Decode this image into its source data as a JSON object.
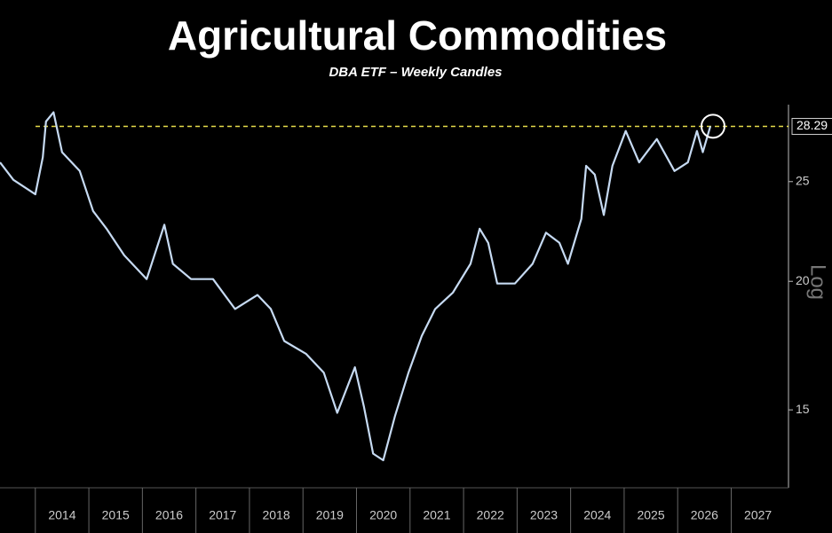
{
  "chart_data": {
    "type": "line",
    "title": "Agricultural Commodities",
    "subtitle": "DBA ETF – Weekly Candles",
    "scale_label": "Log",
    "log_scale": true,
    "x": [
      2013.34,
      2013.59,
      2014.0,
      2014.14,
      2014.2,
      2014.34,
      2014.5,
      2014.83,
      2015.08,
      2015.33,
      2015.66,
      2016.08,
      2016.41,
      2016.57,
      2016.91,
      2017.32,
      2017.73,
      2018.15,
      2018.4,
      2018.65,
      2019.06,
      2019.39,
      2019.64,
      2019.97,
      2020.14,
      2020.31,
      2020.5,
      2020.72,
      2020.97,
      2021.22,
      2021.47,
      2021.8,
      2022.13,
      2022.3,
      2022.46,
      2022.63,
      2022.96,
      2023.29,
      2023.54,
      2023.79,
      2023.95,
      2024.2,
      2024.29,
      2024.45,
      2024.62,
      2024.78,
      2025.03,
      2025.28,
      2025.61,
      2025.94,
      2026.19,
      2026.36,
      2026.47,
      2026.61
    ],
    "series": [
      {
        "name": "DBA",
        "color": "#c6daf2",
        "values": [
          26.1,
          25.1,
          24.3,
          26.4,
          28.6,
          29.2,
          26.7,
          25.6,
          23.4,
          22.5,
          21.2,
          20.1,
          22.7,
          20.8,
          20.1,
          20.1,
          18.8,
          19.4,
          18.8,
          17.5,
          17.0,
          16.3,
          14.9,
          16.5,
          15.1,
          13.6,
          13.4,
          14.8,
          16.3,
          17.7,
          18.8,
          19.5,
          20.8,
          22.5,
          21.8,
          19.9,
          19.9,
          20.8,
          22.3,
          21.8,
          20.8,
          23.0,
          25.9,
          25.4,
          23.2,
          25.9,
          28.0,
          26.1,
          27.5,
          25.6,
          26.1,
          28.0,
          26.7,
          28.3
        ]
      }
    ],
    "xlim": [
      2013.34,
      2028.07
    ],
    "xticks": [
      {
        "value": 2014,
        "label": "2014"
      },
      {
        "value": 2015,
        "label": "2015"
      },
      {
        "value": 2016,
        "label": "2016"
      },
      {
        "value": 2017,
        "label": "2017"
      },
      {
        "value": 2018,
        "label": "2018"
      },
      {
        "value": 2019,
        "label": "2019"
      },
      {
        "value": 2020,
        "label": "2020"
      },
      {
        "value": 2021,
        "label": "2021"
      },
      {
        "value": 2022,
        "label": "2022"
      },
      {
        "value": 2023,
        "label": "2023"
      },
      {
        "value": 2024,
        "label": "2024"
      },
      {
        "value": 2025,
        "label": "2025"
      },
      {
        "value": 2026,
        "label": "2026"
      },
      {
        "value": 2027,
        "label": "2027"
      }
    ],
    "ylim": [
      12.6,
      29.7
    ],
    "yticks": [
      15,
      20,
      25
    ],
    "reference_line": {
      "value": 28.29,
      "color": "#e6dc4a"
    }
  }
}
